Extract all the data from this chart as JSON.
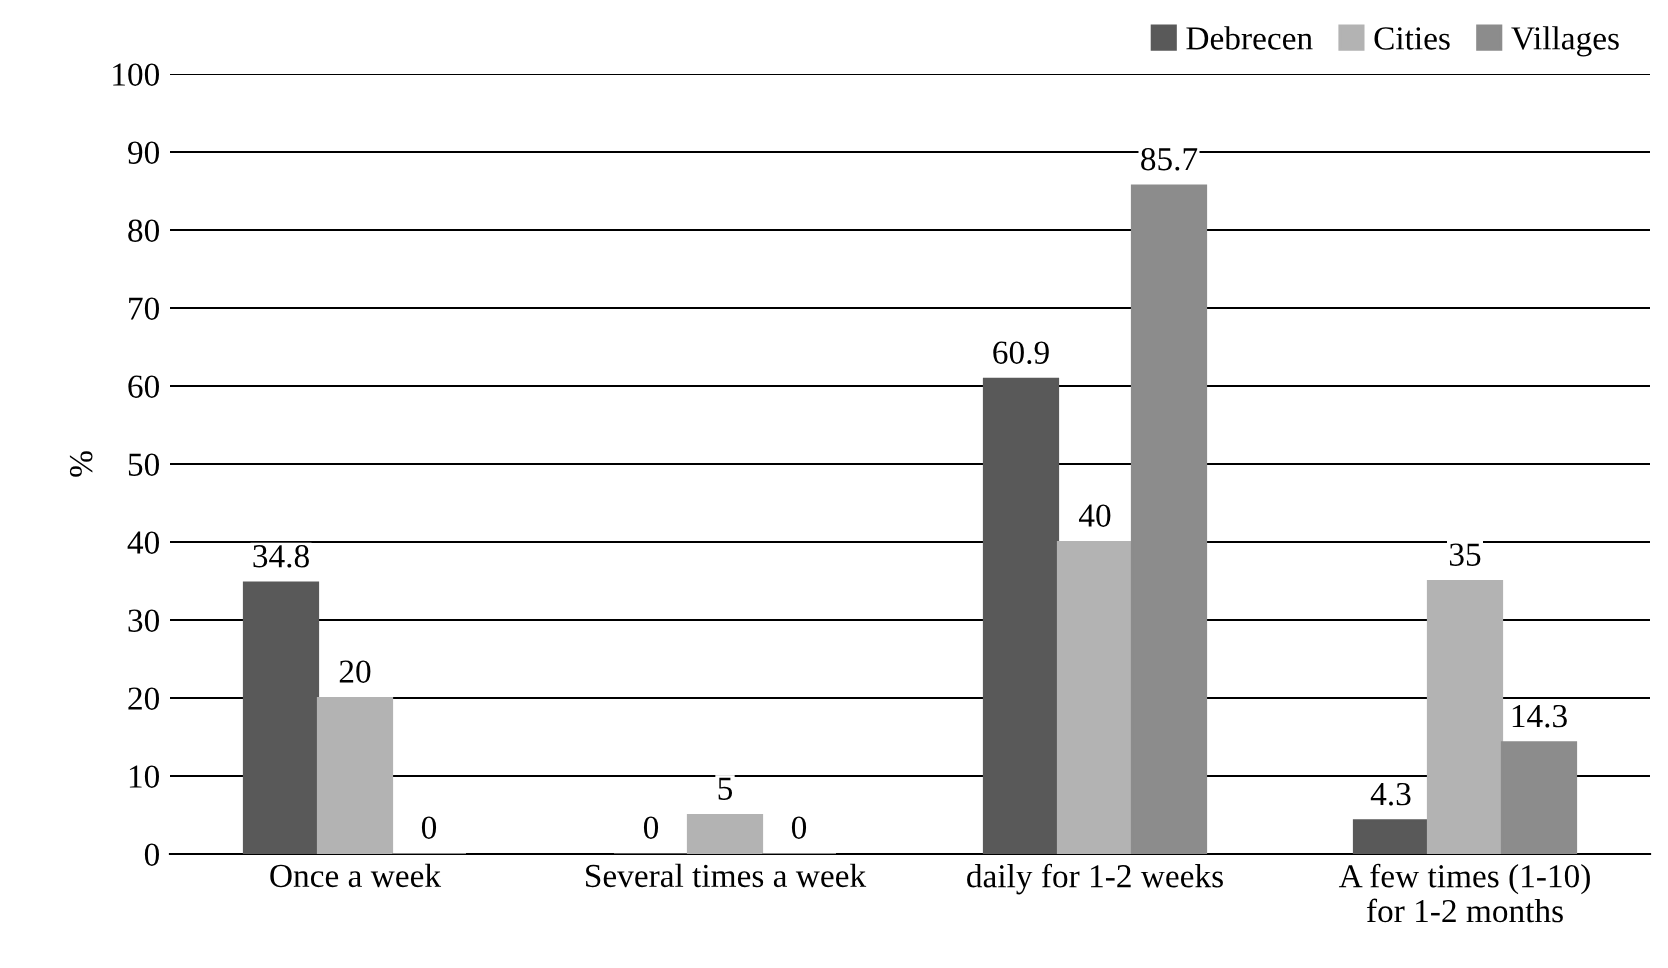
{
  "chart_data": {
    "type": "bar",
    "ylabel": "%",
    "categories": [
      "Once a week",
      "Several times a week",
      "daily for 1-2 weeks",
      "A few times (1-10)\nfor 1-2 months"
    ],
    "series": [
      {
        "name": "Debrecen",
        "color": "#595959",
        "values": [
          34.8,
          0,
          60.9,
          4.3
        ]
      },
      {
        "name": "Cities",
        "color": "#b3b3b3",
        "values": [
          20,
          5,
          40,
          35
        ]
      },
      {
        "name": "Villages",
        "color": "#8c8c8c",
        "values": [
          0,
          0,
          85.7,
          14.3
        ]
      }
    ],
    "ylim": [
      0,
      100
    ],
    "yticks": [
      0,
      10,
      20,
      30,
      40,
      50,
      60,
      70,
      80,
      90,
      100
    ],
    "grid": "y",
    "legend": "top right",
    "data_labels": true
  }
}
